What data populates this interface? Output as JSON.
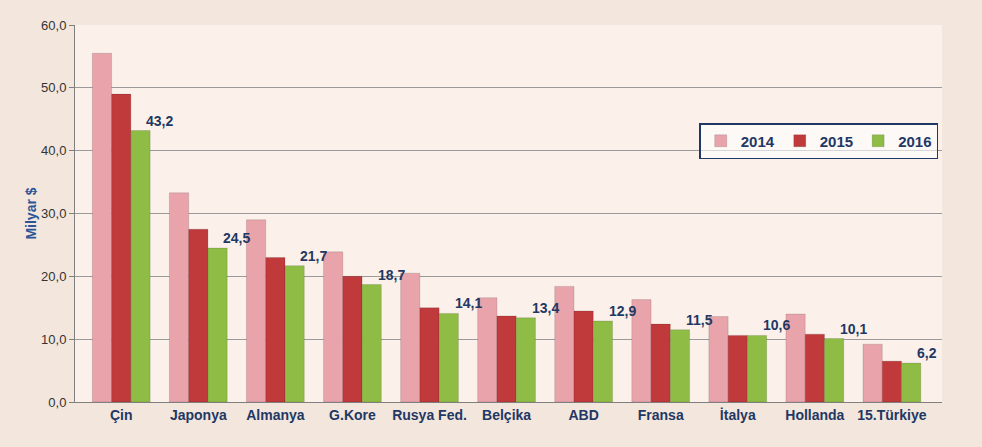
{
  "chart_data": {
    "type": "bar",
    "y_label": "Milyar $",
    "categories": [
      "Çin",
      "Japonya",
      "Almanya",
      "G.Kore",
      "Rusya Fed.",
      "Belçika",
      "ABD",
      "Fransa",
      "İtalya",
      "Hollanda",
      "15.Türkiye"
    ],
    "series": [
      {
        "name": "2014",
        "color": "#e9a3ab",
        "values": [
          55.5,
          33.3,
          29.0,
          23.9,
          20.5,
          16.6,
          18.4,
          16.3,
          13.6,
          14.0,
          9.2
        ]
      },
      {
        "name": "2015",
        "color": "#c0393b",
        "values": [
          49.0,
          27.5,
          23.0,
          20.0,
          15.0,
          13.7,
          14.5,
          12.4,
          10.6,
          10.8,
          6.5
        ]
      },
      {
        "name": "2016",
        "color": "#8fbc45",
        "data_labels": true,
        "values": [
          43.2,
          24.5,
          21.7,
          18.7,
          14.1,
          13.4,
          12.9,
          11.5,
          10.6,
          10.1,
          6.2
        ],
        "value_labels": [
          "43,2",
          "24,5",
          "21,7",
          "18,7",
          "14,1",
          "13,4",
          "12,9",
          "11,5",
          "10,6",
          "10,1",
          "6,2"
        ]
      }
    ],
    "ylim": [
      0,
      60
    ],
    "yticks": [
      {
        "value": 0,
        "label": "0,0"
      },
      {
        "value": 10,
        "label": "10,0"
      },
      {
        "value": 20,
        "label": "20,0"
      },
      {
        "value": 30,
        "label": "30,0"
      },
      {
        "value": 40,
        "label": "40,0"
      },
      {
        "value": 50,
        "label": "50,0"
      },
      {
        "value": 60,
        "label": "60,0"
      }
    ],
    "grid": true,
    "legend": "right"
  }
}
